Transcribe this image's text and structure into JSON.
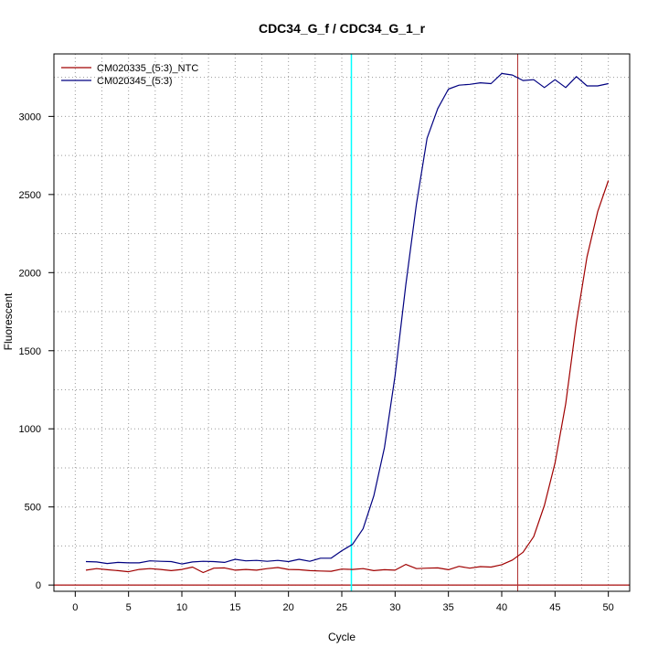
{
  "chart_data": {
    "type": "line",
    "title": "CDC34_G_f / CDC34_G_1_r",
    "xlabel": "Cycle",
    "ylabel": "Fluorescent",
    "xlim": [
      -2,
      52
    ],
    "ylim": [
      -40,
      3400
    ],
    "x_ticks": [
      0,
      5,
      10,
      15,
      20,
      25,
      30,
      35,
      40,
      45,
      50
    ],
    "y_ticks": [
      0,
      500,
      1000,
      1500,
      2000,
      2500,
      3000
    ],
    "grid": true,
    "grid_style": "dotted",
    "legend_position": "top-left",
    "baseline_y": 0,
    "vertical_lines": [
      {
        "x": 25.9,
        "color": "#00ffff"
      },
      {
        "x": 41.5,
        "color": "#b03030"
      }
    ],
    "series": [
      {
        "name": "CM020335_(5:3)_NTC",
        "color": "#a00000",
        "x": [
          1,
          2,
          3,
          4,
          5,
          6,
          7,
          8,
          9,
          10,
          11,
          12,
          13,
          14,
          15,
          16,
          17,
          18,
          19,
          20,
          21,
          22,
          23,
          24,
          25,
          26,
          27,
          28,
          29,
          30,
          31,
          32,
          33,
          34,
          35,
          36,
          37,
          38,
          39,
          40,
          41,
          42,
          43,
          44,
          45,
          46,
          47,
          48,
          49,
          50
        ],
        "y": [
          95,
          105,
          98,
          92,
          85,
          100,
          105,
          100,
          92,
          100,
          115,
          80,
          108,
          110,
          95,
          100,
          95,
          105,
          112,
          100,
          98,
          92,
          90,
          88,
          102,
          100,
          105,
          92,
          98,
          95,
          132,
          105,
          108,
          110,
          98,
          120,
          108,
          118,
          115,
          130,
          160,
          210,
          310,
          510,
          780,
          1160,
          1680,
          2100,
          2390,
          2590
        ]
      },
      {
        "name": "CM020345_(5:3)",
        "color": "#000080",
        "x": [
          1,
          2,
          3,
          4,
          5,
          6,
          7,
          8,
          9,
          10,
          11,
          12,
          13,
          14,
          15,
          16,
          17,
          18,
          19,
          20,
          21,
          22,
          23,
          24,
          25,
          26,
          27,
          28,
          29,
          30,
          31,
          32,
          33,
          34,
          35,
          36,
          37,
          38,
          39,
          40,
          41,
          42,
          43,
          44,
          45,
          46,
          47,
          48,
          49,
          50
        ],
        "y": [
          150,
          148,
          138,
          145,
          142,
          142,
          155,
          152,
          150,
          135,
          148,
          152,
          150,
          145,
          165,
          155,
          158,
          152,
          158,
          150,
          165,
          152,
          172,
          172,
          220,
          260,
          360,
          570,
          880,
          1340,
          1920,
          2440,
          2860,
          3050,
          3175,
          3200,
          3205,
          3215,
          3210,
          3275,
          3265,
          3230,
          3235,
          3185,
          3235,
          3185,
          3255,
          3195,
          3195,
          3210
        ]
      }
    ]
  }
}
